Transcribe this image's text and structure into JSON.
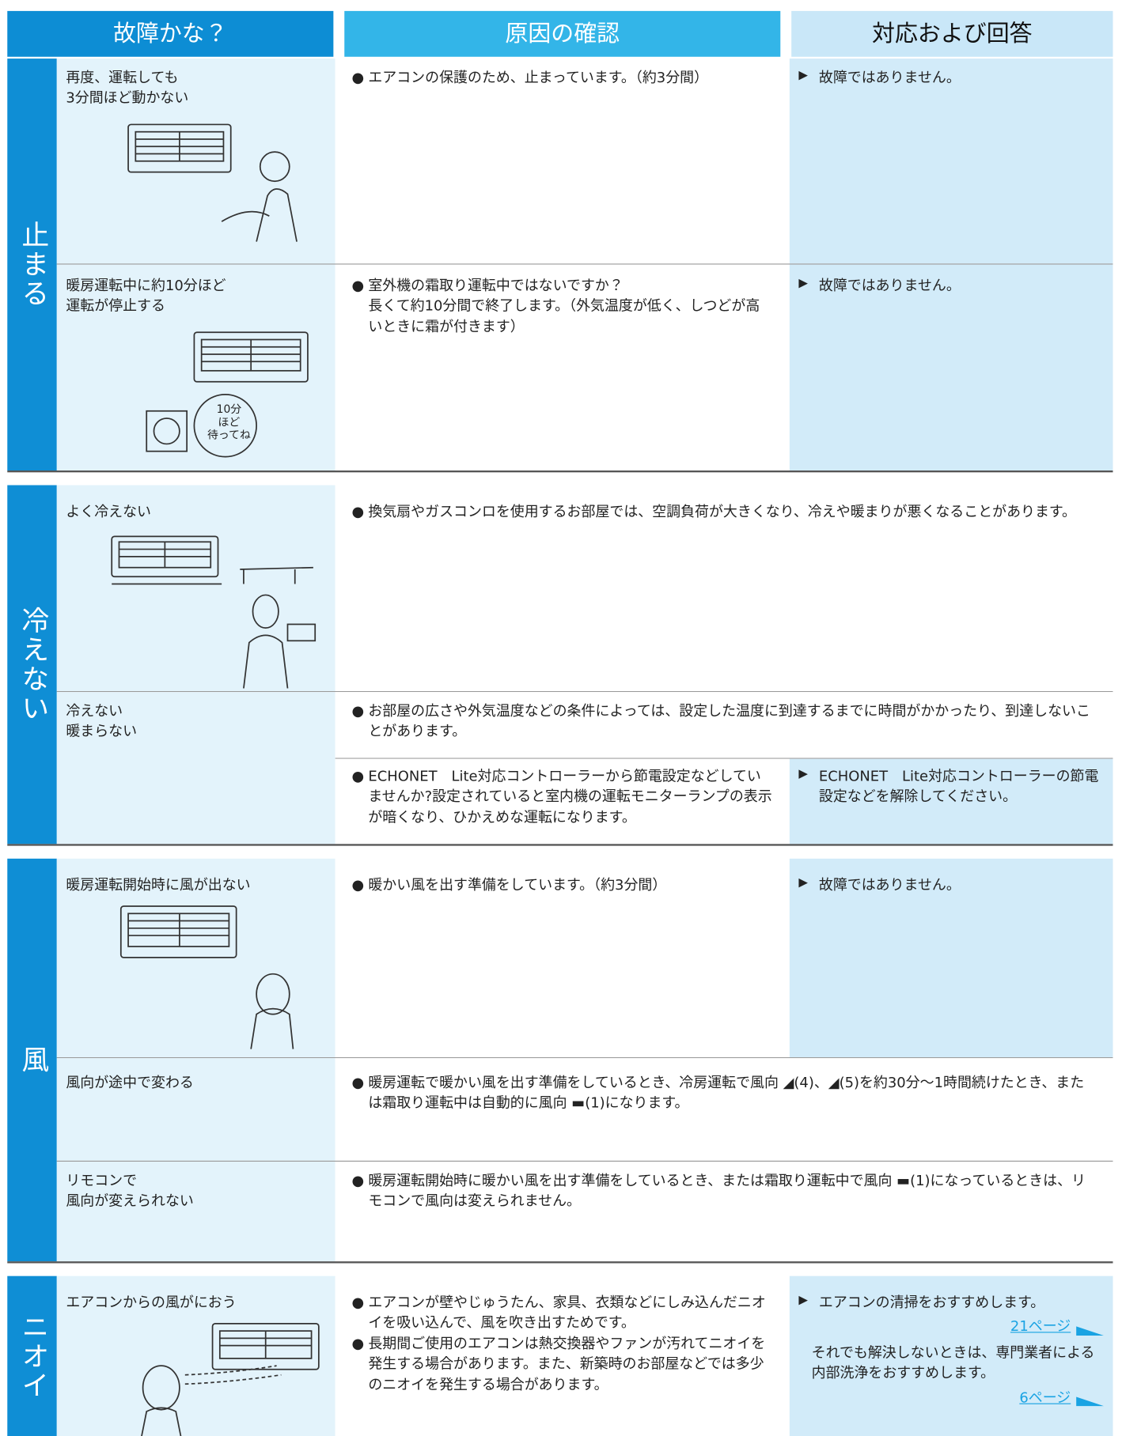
{
  "header": {
    "columns": [
      "故障かな？",
      "原因の確認",
      "対応および回答"
    ]
  },
  "sections": [
    {
      "label": "止まる",
      "rows": [
        {
          "symptom": [
            "再度、運転しても",
            "3分間ほど動かない"
          ],
          "causes": [
            "エアコンの保護のため、止まっています。（約3分間）"
          ],
          "answer": "故障ではありません。"
        },
        {
          "symptom": [
            "暖房運転中に約10分ほど",
            "運転が停止する"
          ],
          "causes": [
            "室外機の霜取り運転中ではないですか？\n長くて約10分間で終了します。（外気温度が低く、しつどが高いときに霜が付きます）"
          ],
          "answer": "故障ではありません。",
          "illustration_text": [
            "10分",
            "ほど",
            "待ってね"
          ]
        }
      ]
    },
    {
      "label": "冷えない",
      "rows": [
        {
          "symptom": [
            "よく冷えない"
          ],
          "causes": [
            "換気扇やガスコンロを使用するお部屋では、空調負荷が大きくなり、冷えや暖まりが悪くなることがあります。"
          ]
        },
        {
          "symptom": [
            "冷えない",
            "暖まらない"
          ],
          "causes": [
            "お部屋の広さや外気温度などの条件によっては、設定した温度に到達するまでに時間がかかったり、到達しないことがあります。",
            "ECHONET　Lite対応コントローラーから節電設定などしていませんか?設定されていると室内機の運転モニターランプの表示が暗くなり、ひかえめな運転になります。"
          ],
          "answer": "ECHONET　Lite対応コントローラーの節電設定などを解除してください。"
        }
      ]
    },
    {
      "label": "風",
      "rows": [
        {
          "symptom": [
            "暖房運転開始時に風が出ない"
          ],
          "causes": [
            "暖かい風を出す準備をしています。（約3分間）"
          ],
          "answer": "故障ではありません。"
        },
        {
          "symptom": [
            "風向が途中で変わる"
          ],
          "causes": [
            "暖房運転で暖かい風を出す準備をしているとき、冷房運転で風向 ◢(4)、◢(5)を約30分〜1時間続けたとき、または霜取り運転中は自動的に風向 ▬(1)になります。"
          ]
        },
        {
          "symptom": [
            "リモコンで",
            "風向が変えられない"
          ],
          "causes": [
            "暖房運転開始時に暖かい風を出す準備をしているとき、または霜取り運転中で風向 ▬(1)になっているときは、リモコンで風向は変えられません。"
          ]
        }
      ]
    },
    {
      "label": "ニオイ",
      "rows": [
        {
          "symptom": [
            "エアコンからの風がにおう"
          ],
          "causes": [
            "エアコンが壁やじゅうたん、家具、衣類などにしみ込んだニオイを吸い込んで、風を吹き出すためです。",
            "長期間ご使用のエアコンは熱交換器やファンが汚れてニオイを発生する場合があります。また、新築時のお部屋などでは多少のニオイを発生する場合があります。"
          ],
          "answer": "エアコンの清掃をおすすめします。",
          "link1": "21ページ",
          "note": "それでも解決しないときは、専門業者による内部洗浄をおすすめします。",
          "link2": "6ページ"
        }
      ]
    }
  ]
}
